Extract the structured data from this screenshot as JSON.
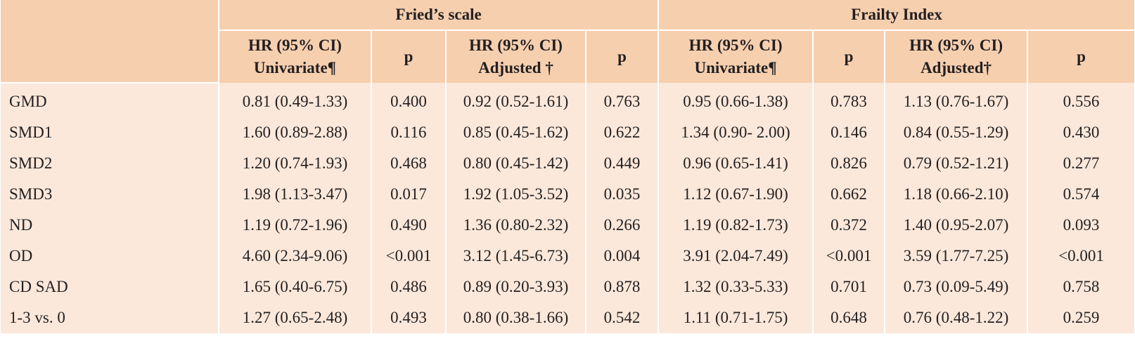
{
  "groups": [
    "Fried’s scale",
    "Frailty Index"
  ],
  "subheaders": [
    {
      "line1": "HR (95% CI)",
      "line2": "Univariate¶"
    },
    {
      "line1": "p",
      "line2": ""
    },
    {
      "line1": "HR (95% CI)",
      "line2": "Adjusted †"
    },
    {
      "line1": "p",
      "line2": ""
    },
    {
      "line1": "HR (95% CI)",
      "line2": "Univariate¶"
    },
    {
      "line1": "p",
      "line2": ""
    },
    {
      "line1": "HR (95% CI)",
      "line2": "Adjusted†"
    },
    {
      "line1": "p",
      "line2": ""
    }
  ],
  "rows": [
    {
      "label": "GMD",
      "cells": [
        "0.81 (0.49-1.33)",
        "0.400",
        "0.92 (0.52-1.61)",
        "0.763",
        "0.95 (0.66-1.38)",
        "0.783",
        "1.13 (0.76-1.67)",
        "0.556"
      ]
    },
    {
      "label": "SMD1",
      "cells": [
        "1.60 (0.89-2.88)",
        "0.116",
        "0.85 (0.45-1.62)",
        "0.622",
        "1.34 (0.90- 2.00)",
        "0.146",
        "0.84 (0.55-1.29)",
        "0.430"
      ]
    },
    {
      "label": "SMD2",
      "cells": [
        "1.20 (0.74-1.93)",
        "0.468",
        "0.80 (0.45-1.42)",
        "0.449",
        "0.96 (0.65-1.41)",
        "0.826",
        "0.79 (0.52-1.21)",
        "0.277"
      ]
    },
    {
      "label": "SMD3",
      "cells": [
        "1.98 (1.13-3.47)",
        "0.017",
        "1.92 (1.05-3.52)",
        "0.035",
        "1.12 (0.67-1.90)",
        "0.662",
        "1.18 (0.66-2.10)",
        "0.574"
      ]
    },
    {
      "label": "ND",
      "cells": [
        "1.19 (0.72-1.96)",
        "0.490",
        "1.36 (0.80-2.32)",
        "0.266",
        "1.19 (0.82-1.73)",
        "0.372",
        "1.40 (0.95-2.07)",
        "0.093"
      ]
    },
    {
      "label": "OD",
      "cells": [
        "4.60 (2.34-9.06)",
        "<0.001",
        "3.12 (1.45-6.73)",
        "0.004",
        "3.91 (2.04-7.49)",
        "<0.001",
        "3.59 (1.77-7.25)",
        "<0.001"
      ]
    },
    {
      "label": "CD SAD",
      "cells": [
        "1.65 (0.40-6.75)",
        "0.486",
        "0.89 (0.20-3.93)",
        "0.878",
        "1.32 (0.33-5.33)",
        "0.701",
        "0.73 (0.09-5.49)",
        "0.758"
      ]
    },
    {
      "label": "1-3 vs. 0",
      "cells": [
        "1.27 (0.65-2.48)",
        "0.493",
        "0.80 (0.38-1.66)",
        "0.542",
        "1.11 (0.71-1.75)",
        "0.648",
        "0.76 (0.48-1.22)",
        "0.259"
      ]
    }
  ]
}
